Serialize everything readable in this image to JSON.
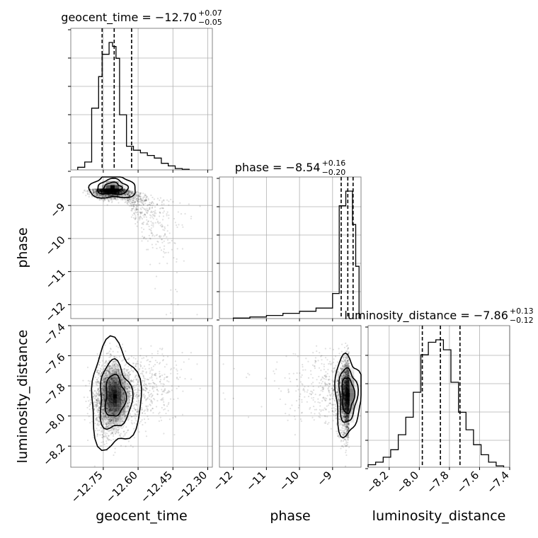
{
  "chart_data": {
    "type": "corner",
    "parameters": [
      "geocent_time",
      "phase",
      "luminosity_distance"
    ],
    "axis_labels": [
      "geocent_time",
      "phase",
      "luminosity_distance"
    ],
    "ranges": {
      "geocent_time": [
        -12.89,
        -12.28
      ],
      "phase": [
        -12.42,
        -8.14
      ],
      "luminosity_distance": [
        -8.34,
        -7.4
      ]
    },
    "ticks": {
      "geocent_time": [
        -12.75,
        -12.6,
        -12.45,
        -12.3
      ],
      "geocent_time_labels": [
        "−12.75",
        "−12.60",
        "−12.45",
        "−12.30"
      ],
      "phase": [
        -12,
        -11,
        -10,
        -9
      ],
      "phase_labels": [
        "−12",
        "−11",
        "−10",
        "−9"
      ],
      "luminosity_distance": [
        -8.2,
        -8.0,
        -7.8,
        -7.6,
        -7.4
      ],
      "luminosity_distance_labels": [
        "−8.2",
        "−8.0",
        "−7.8",
        "−7.6",
        "−7.4"
      ]
    },
    "titles": {
      "geocent_time": {
        "prefix": "geocent_time = −12.70",
        "plus": "+0.07",
        "minus": "−0.05"
      },
      "phase": {
        "prefix": "phase = −8.54",
        "plus": "+0.16",
        "minus": "−0.20"
      },
      "luminosity_distance": {
        "prefix": "luminosity_distance = −7.86",
        "plus": "+0.13",
        "minus": "−0.12"
      }
    },
    "quantiles": {
      "geocent_time": [
        -12.755,
        -12.703,
        -12.628
      ],
      "phase": [
        -8.74,
        -8.54,
        -8.38
      ],
      "luminosity_distance": [
        -7.98,
        -7.86,
        -7.73
      ]
    },
    "histograms": {
      "geocent_time": {
        "edges": [
          -12.86,
          -12.83,
          -12.8,
          -12.77,
          -12.755,
          -12.74,
          -12.725,
          -12.71,
          -12.695,
          -12.68,
          -12.665,
          -12.65,
          -12.635,
          -12.62,
          -12.59,
          -12.56,
          -12.53,
          -12.5,
          -12.47,
          -12.44,
          -12.41,
          -12.38
        ],
        "counts": [
          2,
          6,
          47,
          71,
          88,
          88,
          97,
          94,
          85,
          42,
          42,
          18,
          18,
          15,
          13,
          11,
          9,
          5,
          3,
          1,
          0.5
        ]
      },
      "phase": {
        "edges": [
          -12.0,
          -11.5,
          -11.0,
          -10.5,
          -10.0,
          -9.5,
          -9.0,
          -8.9,
          -8.8,
          -8.7,
          -8.6,
          -8.5,
          -8.4,
          -8.3,
          -8.2
        ],
        "counts": [
          0.5,
          1.5,
          3,
          5,
          7,
          10,
          24,
          24,
          108,
          108,
          122,
          122,
          90,
          50
        ]
      },
      "luminosity_distance": {
        "edges": [
          -8.34,
          -8.29,
          -8.24,
          -8.19,
          -8.14,
          -8.09,
          -8.04,
          -7.99,
          -7.94,
          -7.89,
          -7.84,
          -7.79,
          -7.74,
          -7.69,
          -7.64,
          -7.59,
          -7.54,
          -7.49,
          -7.44
        ],
        "counts": [
          1,
          2,
          4,
          7,
          13,
          20,
          30,
          45,
          50,
          51,
          47,
          34,
          22,
          15,
          9,
          5,
          2,
          0.5
        ]
      }
    },
    "density_peaks": {
      "geocent_time_vs_phase": {
        "x": -12.71,
        "y": -8.45
      },
      "geocent_time_vs_luminosity_distance": {
        "x": -12.7,
        "y": -7.87
      },
      "phase_vs_luminosity_distance": {
        "x": -8.54,
        "y": -7.86
      }
    },
    "grid": true,
    "legend": "none"
  }
}
